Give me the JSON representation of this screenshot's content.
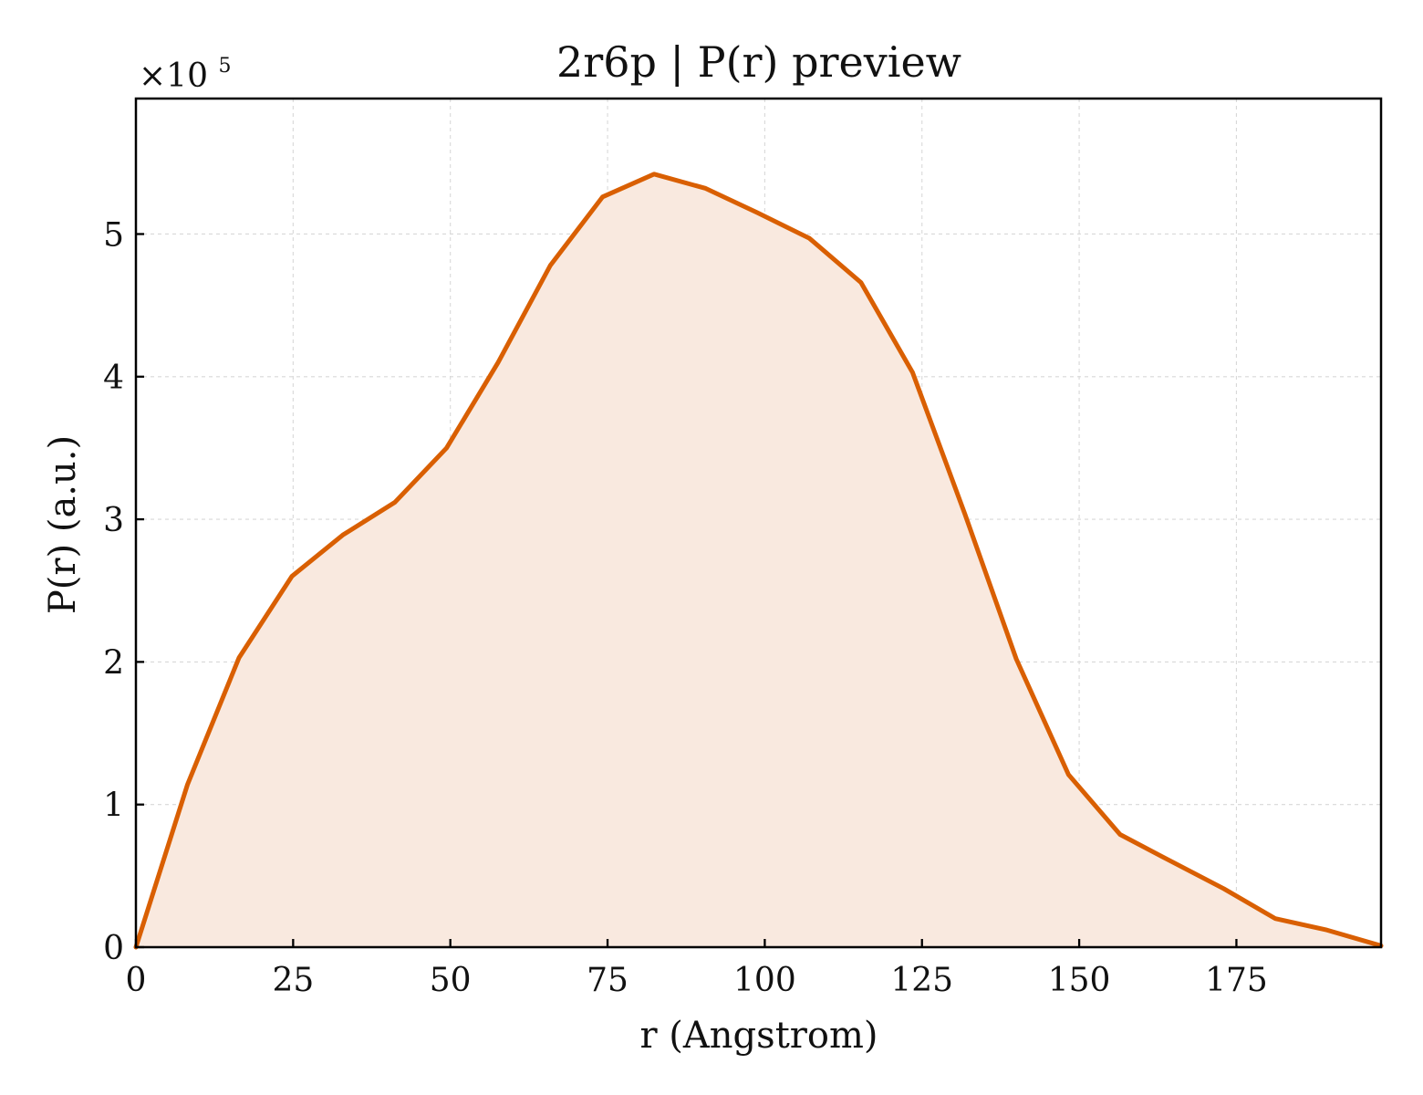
{
  "chart_data": {
    "type": "area",
    "title": "2r6p | P(r) preview",
    "xlabel": "r (Angstrom)",
    "ylabel": "P(r) (a.u.)",
    "y_multiplier_base": "×10",
    "y_multiplier_exp": "5",
    "xlim": [
      0,
      198
    ],
    "ylim": [
      0,
      5.95
    ],
    "x_ticks": [
      0,
      25,
      50,
      75,
      100,
      125,
      150,
      175
    ],
    "y_ticks": [
      0,
      1,
      2,
      3,
      4,
      5
    ],
    "grid": true,
    "x": [
      0,
      8.2,
      16.4,
      24.8,
      32.9,
      41.2,
      49.4,
      57.6,
      65.9,
      74.2,
      82.4,
      90.6,
      98.8,
      107.1,
      115.3,
      123.5,
      131.8,
      140.0,
      148.3,
      156.5,
      164.7,
      173.0,
      181.2,
      189.4,
      198.0
    ],
    "values": [
      0,
      1.14,
      2.03,
      2.6,
      2.89,
      3.12,
      3.5,
      4.1,
      4.78,
      5.26,
      5.42,
      5.32,
      5.15,
      4.97,
      4.66,
      4.03,
      3.04,
      2.02,
      1.21,
      0.79,
      0.6,
      0.41,
      0.2,
      0.12,
      0.01
    ],
    "colors": {
      "line": "#d95f02",
      "fill": "#f9e9df"
    }
  }
}
